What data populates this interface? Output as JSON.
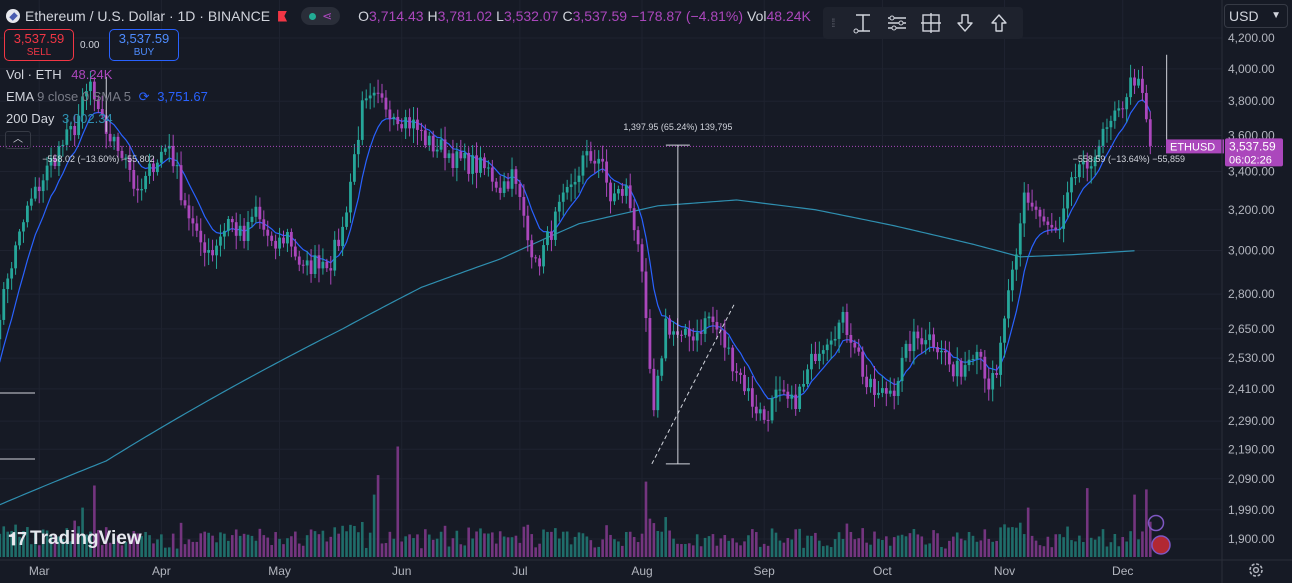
{
  "header": {
    "symbol_title": "Ethereum / U.S. Dollar · 1D · BINANCE",
    "ohlc": [
      {
        "k": "O",
        "v": "3,714.43"
      },
      {
        "k": "H",
        "v": "3,781.02"
      },
      {
        "k": "L",
        "v": "3,532.07"
      },
      {
        "k": "C",
        "v": "3,537.59 −178.87 (−4.81%)"
      },
      {
        "k": "Vol",
        "v": "48.24K"
      }
    ]
  },
  "trade": {
    "sell_price": "3,537.59",
    "sell_label": "SELL",
    "buy_price": "3,537.59",
    "buy_label": "BUY",
    "spread": "0.00"
  },
  "indicators": {
    "vol_label": "Vol · ETH",
    "vol_value": "48.24K",
    "ema_label": "EMA",
    "ema_params": "9 close 0 SMA 5",
    "ema_value": "3,751.67",
    "ma200_label": "200 Day",
    "ma200_value": "3,002.34"
  },
  "toolbar": {
    "icons": [
      "drag-handle-icon",
      "text-cursor-icon",
      "settings-lines-icon",
      "frame-icon",
      "arrow-down-icon",
      "arrow-up-icon"
    ]
  },
  "currency": {
    "value": "USD"
  },
  "branding": {
    "logo_text": "TradingView"
  },
  "colors": {
    "up": "#26a69a",
    "down": "#ab47bc",
    "ema": "#2962ff",
    "ma200": "#2f8fb0",
    "price_line": "#ab47bc",
    "background": "#161a25"
  },
  "chart_data": {
    "type": "candlestick",
    "title": "Ethereum / U.S. Dollar · 1D · BINANCE",
    "y_scale": "log",
    "ylim": [
      1850,
      4300
    ],
    "y_ticks": [
      {
        "v": 4200,
        "label": "4,200.00"
      },
      {
        "v": 4000,
        "label": "4,000.00"
      },
      {
        "v": 3800,
        "label": "3,800.00"
      },
      {
        "v": 3600,
        "label": "3,600.00"
      },
      {
        "v": 3400,
        "label": "3,400.00"
      },
      {
        "v": 3200,
        "label": "3,200.00"
      },
      {
        "v": 3000,
        "label": "3,000.00"
      },
      {
        "v": 2800,
        "label": "2,800.00"
      },
      {
        "v": 2650,
        "label": "2,650.00"
      },
      {
        "v": 2530,
        "label": "2,530.00"
      },
      {
        "v": 2410,
        "label": "2,410.00"
      },
      {
        "v": 2290,
        "label": "2,290.00"
      },
      {
        "v": 2190,
        "label": "2,190.00"
      },
      {
        "v": 2090,
        "label": "2,090.00"
      },
      {
        "v": 1990,
        "label": "1,990.00"
      },
      {
        "v": 1900,
        "label": "1,900.00"
      }
    ],
    "x_month_labels": [
      {
        "i": 13,
        "label": "Mar"
      },
      {
        "i": 44,
        "label": "Apr"
      },
      {
        "i": 74,
        "label": "May"
      },
      {
        "i": 105,
        "label": "Jun"
      },
      {
        "i": 135,
        "label": "Jul"
      },
      {
        "i": 166,
        "label": "Aug"
      },
      {
        "i": 197,
        "label": "Sep"
      },
      {
        "i": 227,
        "label": "Oct"
      },
      {
        "i": 258,
        "label": "Nov"
      },
      {
        "i": 288,
        "label": "Dec"
      }
    ],
    "close_anchors": [
      [
        0,
        2450
      ],
      [
        4,
        2800
      ],
      [
        10,
        3200
      ],
      [
        16,
        3450
      ],
      [
        22,
        3650
      ],
      [
        26,
        3900
      ],
      [
        28,
        3700
      ],
      [
        32,
        3550
      ],
      [
        35,
        3500
      ],
      [
        38,
        3250
      ],
      [
        42,
        3450
      ],
      [
        46,
        3550
      ],
      [
        49,
        3300
      ],
      [
        53,
        3050
      ],
      [
        57,
        3000
      ],
      [
        61,
        3150
      ],
      [
        65,
        3050
      ],
      [
        68,
        3200
      ],
      [
        72,
        3000
      ],
      [
        76,
        3080
      ],
      [
        80,
        2900
      ],
      [
        84,
        2960
      ],
      [
        87,
        2950
      ],
      [
        90,
        3100
      ],
      [
        92,
        3350
      ],
      [
        95,
        3750
      ],
      [
        98,
        3800
      ],
      [
        101,
        3780
      ],
      [
        104,
        3720
      ],
      [
        108,
        3660
      ],
      [
        112,
        3550
      ],
      [
        116,
        3520
      ],
      [
        119,
        3460
      ],
      [
        123,
        3440
      ],
      [
        127,
        3400
      ],
      [
        130,
        3320
      ],
      [
        133,
        3380
      ],
      [
        137,
        3100
      ],
      [
        139,
        2920
      ],
      [
        142,
        3050
      ],
      [
        145,
        3200
      ],
      [
        148,
        3300
      ],
      [
        151,
        3460
      ],
      [
        155,
        3480
      ],
      [
        158,
        3260
      ],
      [
        162,
        3300
      ],
      [
        165,
        3050
      ],
      [
        167,
        2650
      ],
      [
        169,
        2300
      ],
      [
        172,
        2680
      ],
      [
        176,
        2600
      ],
      [
        180,
        2640
      ],
      [
        183,
        2700
      ],
      [
        186,
        2620
      ],
      [
        188,
        2550
      ],
      [
        191,
        2460
      ],
      [
        194,
        2360
      ],
      [
        197,
        2300
      ],
      [
        200,
        2380
      ],
      [
        204,
        2350
      ],
      [
        207,
        2420
      ],
      [
        210,
        2560
      ],
      [
        214,
        2640
      ],
      [
        217,
        2680
      ],
      [
        220,
        2600
      ],
      [
        223,
        2420
      ],
      [
        226,
        2380
      ],
      [
        230,
        2420
      ],
      [
        234,
        2590
      ],
      [
        238,
        2630
      ],
      [
        242,
        2580
      ],
      [
        245,
        2460
      ],
      [
        248,
        2510
      ],
      [
        251,
        2600
      ],
      [
        254,
        2430
      ],
      [
        256,
        2440
      ],
      [
        258,
        2700
      ],
      [
        261,
        2950
      ],
      [
        263,
        3280
      ],
      [
        266,
        3200
      ],
      [
        269,
        3100
      ],
      [
        272,
        3080
      ],
      [
        274,
        3250
      ],
      [
        277,
        3440
      ],
      [
        279,
        3360
      ],
      [
        281,
        3530
      ],
      [
        284,
        3620
      ],
      [
        287,
        3720
      ],
      [
        289,
        3860
      ],
      [
        291,
        3950
      ],
      [
        293,
        3810
      ],
      [
        295,
        3540
      ]
    ],
    "vol_spikes": [
      [
        22,
        0.28
      ],
      [
        24,
        0.38
      ],
      [
        27,
        0.55
      ],
      [
        98,
        0.48
      ],
      [
        99,
        0.63
      ],
      [
        104,
        0.85
      ],
      [
        167,
        0.58
      ],
      [
        264,
        0.38
      ],
      [
        279,
        0.53
      ],
      [
        291,
        0.48
      ],
      [
        294,
        0.52
      ]
    ],
    "last_price": {
      "value": 3537.59,
      "symbol": "ETHUSD",
      "label": "3,537.59",
      "countdown": "06:02:26"
    },
    "annotations": [
      {
        "text": "1,397.95 (65.24%) 139,795",
        "from_i": 169,
        "to_i": 169,
        "low": 2140,
        "high": 3545
      },
      {
        "text": "−558.02 (−13.60%) −55,802",
        "i": 29,
        "y": 3600
      },
      {
        "text": "−558.59 (−13.64%) −55,859",
        "i": 289,
        "y": 3600
      }
    ],
    "series": [
      {
        "name": "Vol · ETH"
      },
      {
        "name": "EMA"
      },
      {
        "name": "200 Day"
      }
    ]
  }
}
